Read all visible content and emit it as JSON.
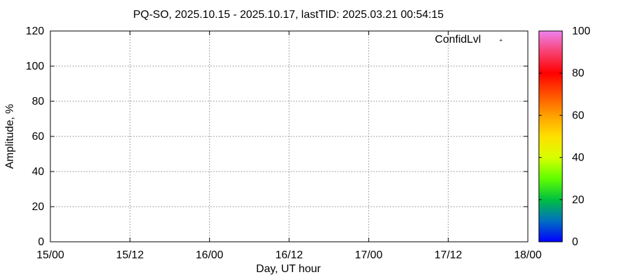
{
  "chart_data": {
    "type": "scatter",
    "title": "PQ-SO, 2025.10.15 - 2025.10.17, lastTID: 2025.03.21 00:54:15",
    "xlabel": "Day, UT hour",
    "ylabel": "Amplitude, %",
    "x_ticks": [
      "15/00",
      "15/12",
      "16/00",
      "16/12",
      "17/00",
      "17/12",
      "18/00"
    ],
    "xlim_hours": [
      0,
      72
    ],
    "ylim": [
      0,
      120
    ],
    "y_ticks": [
      0,
      20,
      40,
      60,
      80,
      100,
      120
    ],
    "grid": true,
    "legend": {
      "entries": [
        "ConfidLvl"
      ],
      "placement": "top-right",
      "marker_color": "#ff0000"
    },
    "colorbar": {
      "range": [
        0,
        100
      ],
      "ticks": [
        0,
        20,
        40,
        60,
        80,
        100
      ]
    },
    "series": [
      {
        "name": "ConfidLvl",
        "points": []
      }
    ]
  }
}
